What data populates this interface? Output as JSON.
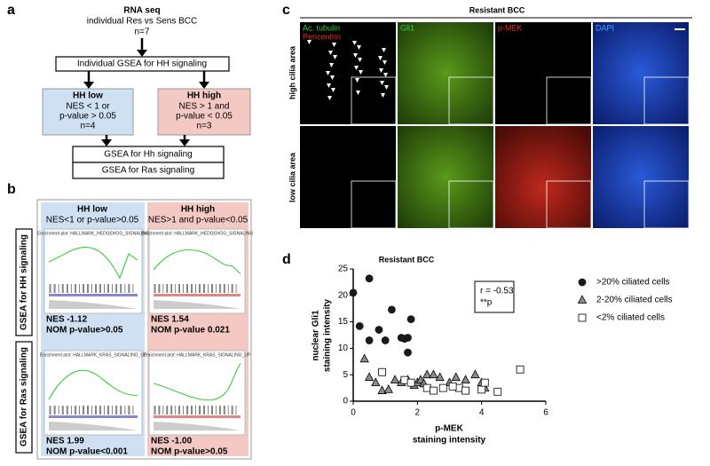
{
  "panel_a": {
    "letter": "a",
    "title": "RNA seq",
    "subtitle": "individual Res vs Sens BCC",
    "n": "n=7",
    "step": "Individual GSEA for HH signaling",
    "low": {
      "title": "HH low",
      "lines": [
        "NES < 1 or",
        "p-value > 0.05",
        "n=4"
      ]
    },
    "high": {
      "title": "HH high",
      "lines": [
        "NES > 1 and",
        "p-value < 0.05",
        "n=3"
      ]
    },
    "final": [
      "GSEA for Hh signaling",
      "GSEA for Ras signaling"
    ]
  },
  "panel_b": {
    "letter": "b",
    "columns": [
      {
        "title": "HH low",
        "criterion": "NES<1 or p-value>0.05"
      },
      {
        "title": "HH high",
        "criterion": "NES>1 and p-value<0.05"
      }
    ],
    "rows": [
      "GSEA for HH signaling",
      "GSEA for Ras signaling"
    ],
    "plot_titles": [
      "Enrichment plot: HALLMARK_HEDGEHOG_SIGNALING",
      "Enrichment plot: HALLMARK_KRAS_SIGNALING_UP"
    ],
    "results": [
      [
        [
          "NES -1.12",
          "NOM p-value>0.05"
        ],
        [
          "NES 1.54",
          "NOM p-value 0.021"
        ]
      ],
      [
        [
          "NES 1.99",
          "NOM p-value<0.001"
        ],
        [
          "NES -1.00",
          "NOM p-value>0.05"
        ]
      ]
    ]
  },
  "panel_c": {
    "letter": "c",
    "title": "Resistant BCC",
    "stains": [
      "Ac. tubulin",
      "Gli1",
      "p-MEK",
      "DAPI"
    ],
    "stain_extra": "Pericentrin",
    "rows": [
      "high cilia area",
      "low cilia area"
    ]
  },
  "chart_data": {
    "type": "scatter",
    "letter": "d",
    "title": "Resistant BCC",
    "ylabel": [
      "nuclear Gli1",
      "staining intensity"
    ],
    "xlabel": [
      "p-MEK",
      "staining intensity"
    ],
    "xlim": [
      0,
      6
    ],
    "xticks": [
      0,
      2,
      4,
      6
    ],
    "ylim": [
      0,
      25
    ],
    "yticks": [
      0,
      5,
      10,
      15,
      20,
      25
    ],
    "annotation": [
      "r = -0.53",
      "**p"
    ],
    "series": [
      {
        "name": ">20% ciliated cells",
        "marker": "circle",
        "color": "#1a1a1a",
        "x": [
          0,
          0.2,
          0.5,
          0.5,
          0.8,
          1.0,
          1.2,
          1.5,
          1.6,
          1.7,
          1.8,
          1.7
        ],
        "values": [
          20.5,
          14.2,
          23.2,
          11.5,
          13.5,
          11.5,
          17.3,
          12,
          11.8,
          12,
          15.5,
          9.2
        ]
      },
      {
        "name": "2-20% ciliated cells",
        "marker": "triangle",
        "color": "#8c8c8c",
        "x": [
          0.35,
          0.5,
          0.7,
          0.9,
          1.1,
          1.3,
          1.5,
          1.7,
          1.9,
          2.0,
          2.1,
          2.3,
          2.5,
          2.7,
          3.0,
          3.2,
          3.5,
          3.8,
          4.0,
          4.1,
          2.2
        ],
        "values": [
          8,
          4.5,
          3.5,
          2,
          2.2,
          4,
          3.5,
          4,
          3,
          3.5,
          4,
          5,
          5,
          4.5,
          3.5,
          4.5,
          4,
          5,
          3.5,
          2.5,
          3.3
        ]
      },
      {
        "name": "<2% ciliated cells",
        "marker": "square",
        "color": "#ffffff",
        "x": [
          0.9,
          1.6,
          1.8,
          2.3,
          2.5,
          2.8,
          3.3,
          3.5,
          4.0,
          4.5,
          4.1,
          5.2,
          3.1
        ],
        "values": [
          5.5,
          4,
          3.5,
          2.5,
          2,
          2.5,
          2.5,
          2,
          2.2,
          1.8,
          3.5,
          6,
          2.8
        ]
      }
    ]
  }
}
